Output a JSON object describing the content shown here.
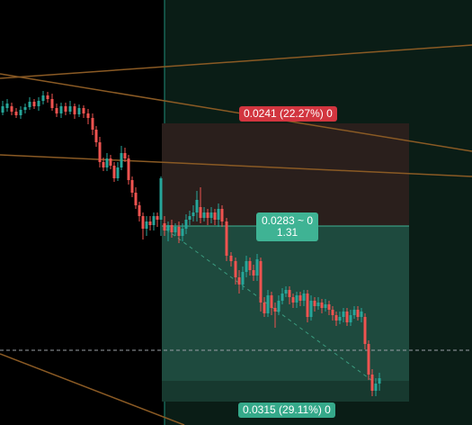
{
  "position_tool": {
    "stop_label": "0.0241 (22.27%) 0",
    "center_line1": "0.0283 ~ 0",
    "center_line2": "1.31",
    "target_label": "0.0315 (29.11%) 0"
  },
  "colors": {
    "background": "#000000",
    "selection_background": "#0a1d16",
    "stop_zone": "#2a1f1c",
    "target_zone": "#1e4a3e",
    "target_zone_bottom": "#17392f",
    "bull_candle": "#26a69a",
    "bear_candle": "#ef5350",
    "trend_line": "#8a5a24",
    "selection_edge": "#1f8e7a",
    "stop_label_bg": "#d2353f",
    "target_label_bg": "#35a98a",
    "crosshair": "#9aa0a6"
  }
}
